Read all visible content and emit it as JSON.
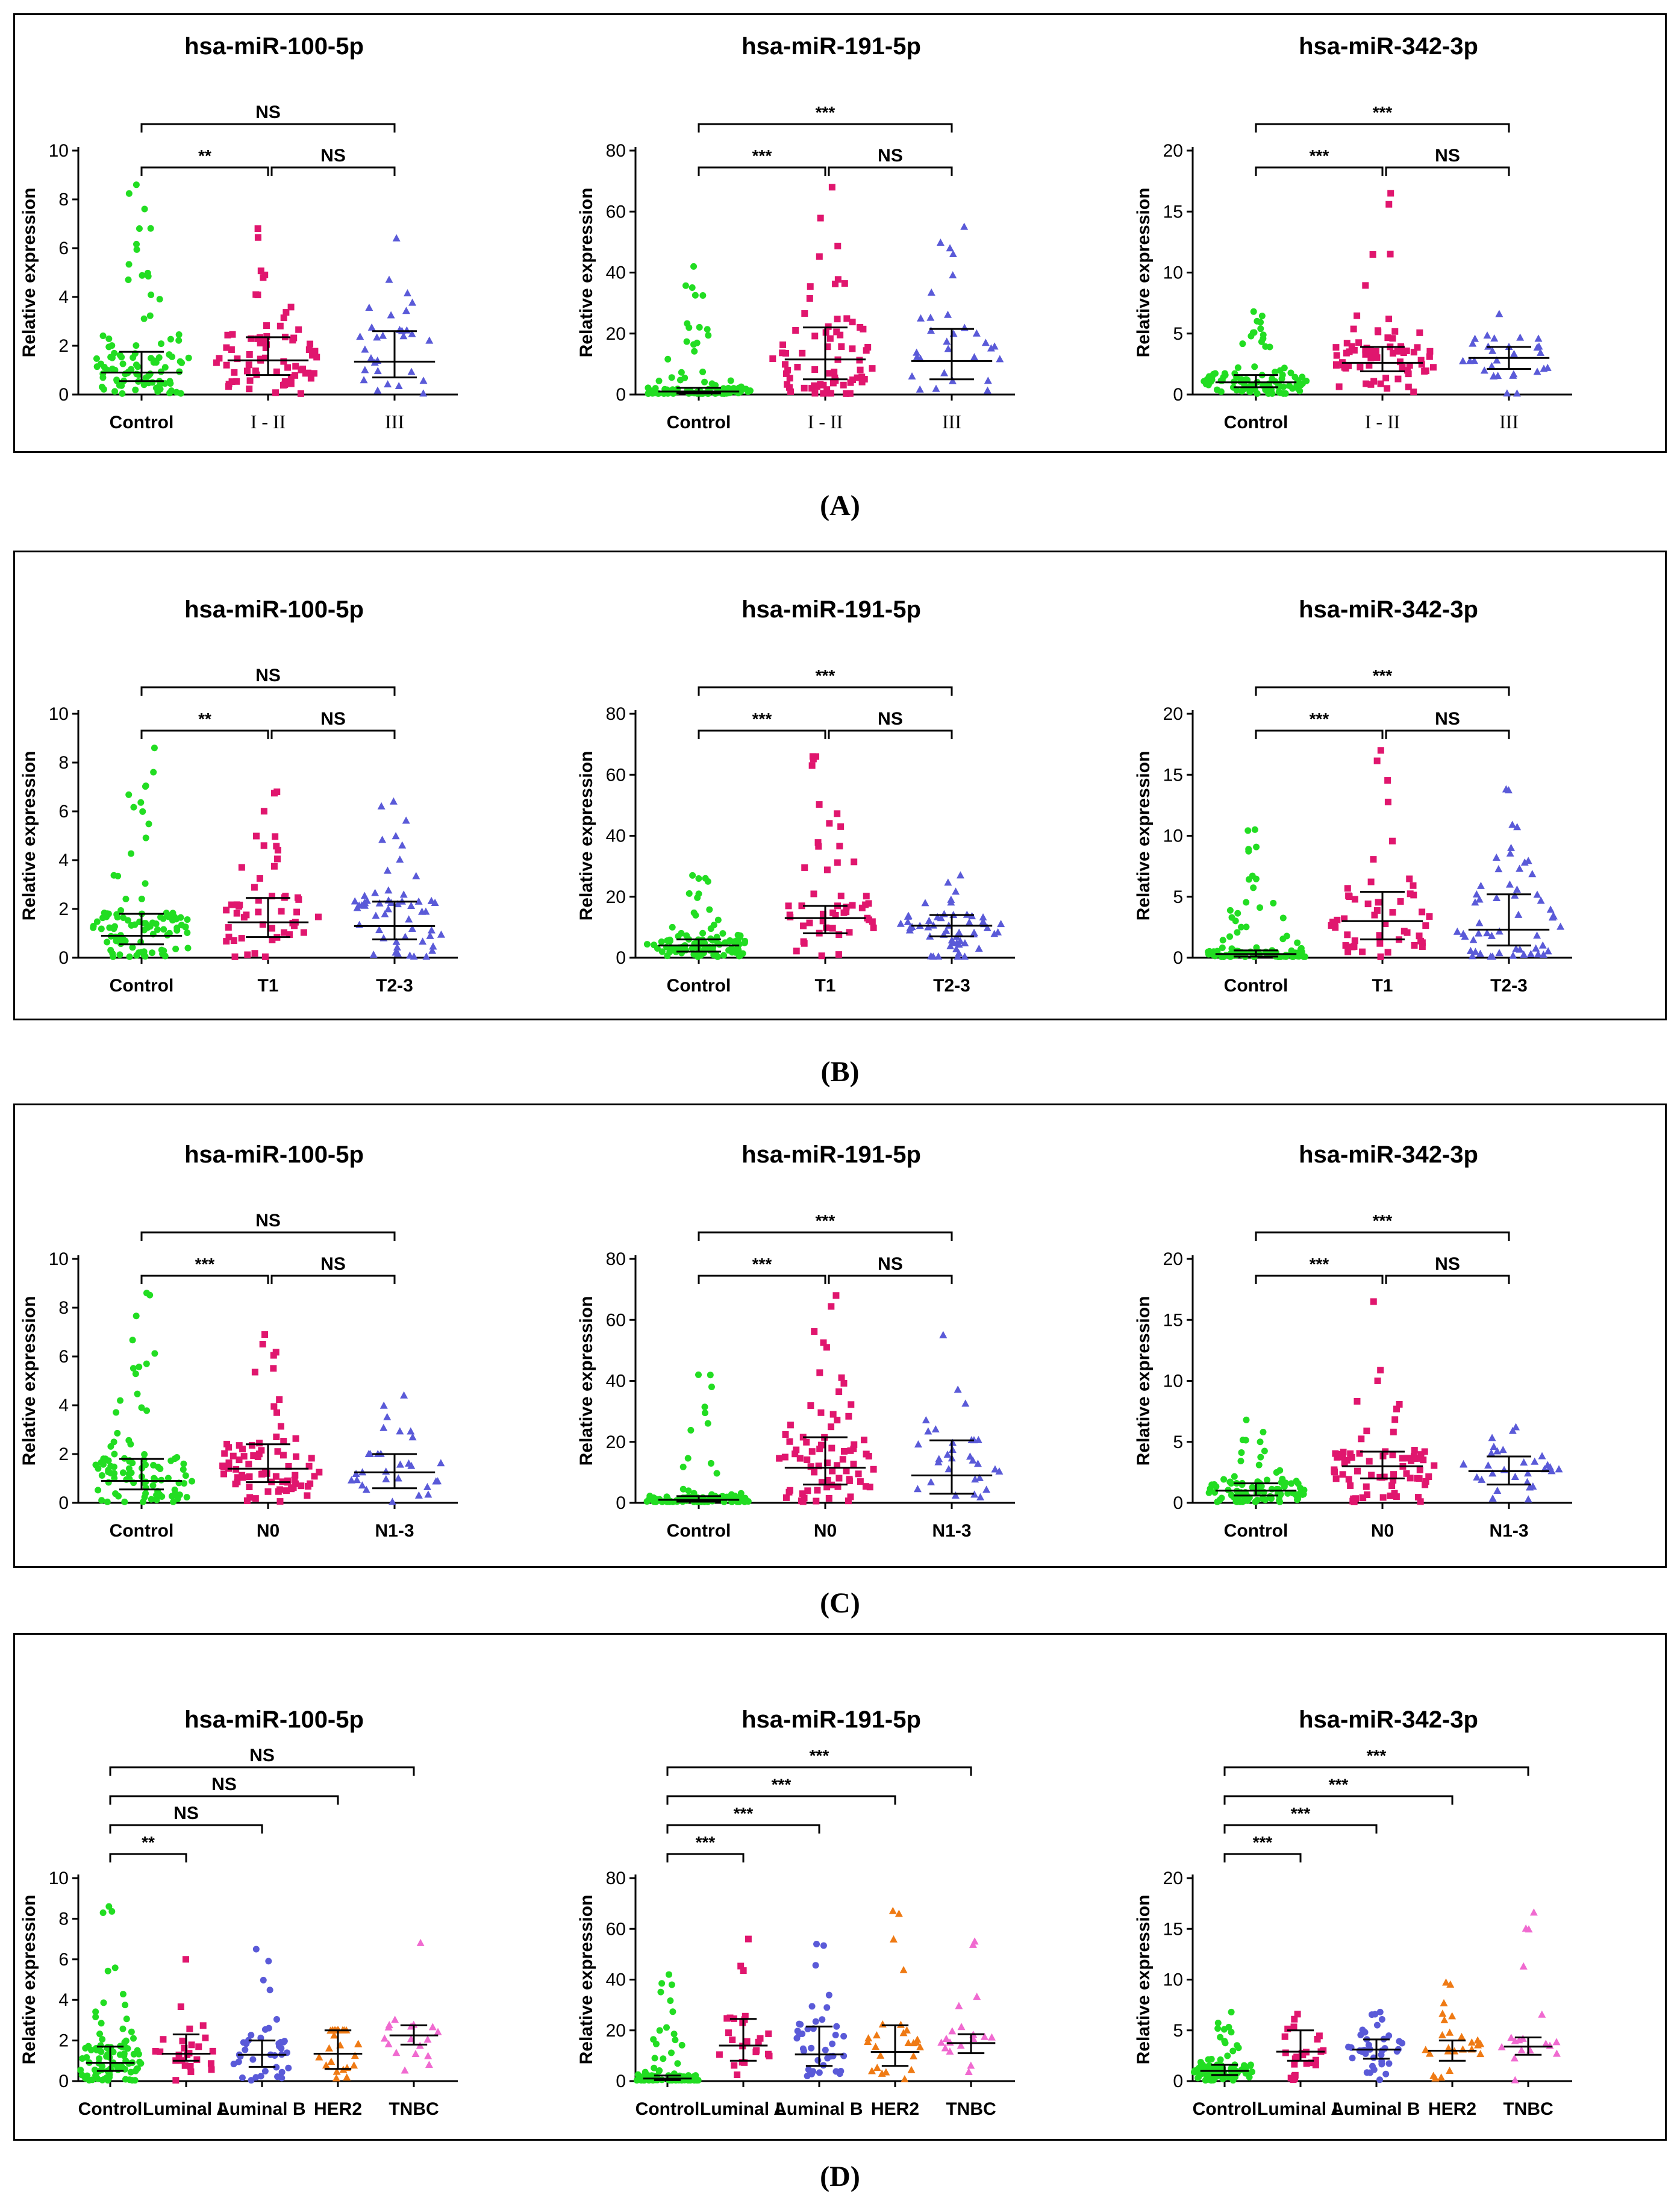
{
  "figure": {
    "colors": {
      "control": "#22dd22",
      "group1": "#e0166e",
      "group2": "#5a5ad8",
      "her2": "#ef7a14",
      "tnbc": "#f06ad0",
      "median": "#000000"
    },
    "panel_labels": [
      "(A)",
      "(B)",
      "(C)",
      "(D)"
    ]
  },
  "chart_data": [
    {
      "panel": "A",
      "title": "hsa-miR-100-5p",
      "type": "scatter",
      "ylabel": "Relative expression",
      "ylim": [
        0,
        10
      ],
      "yticks": [
        0,
        2,
        4,
        6,
        8,
        10
      ],
      "categories": [
        "Control",
        "I - II",
        "III"
      ],
      "medians": [
        0.9,
        1.4,
        1.35
      ],
      "q1": [
        0.55,
        0.8,
        0.7
      ],
      "q3": [
        1.75,
        2.35,
        2.6
      ],
      "ns": [
        95,
        70,
        30
      ],
      "maxima": [
        8.6,
        6.8,
        6.4
      ],
      "brackets": [
        {
          "from": 0,
          "to": 1,
          "label": "**"
        },
        {
          "from": 1,
          "to": 2,
          "label": "NS"
        },
        {
          "from": 0,
          "to": 2,
          "label": "NS"
        }
      ]
    },
    {
      "panel": "A",
      "title": "hsa-miR-191-5p",
      "type": "scatter",
      "ylabel": "Relative expression",
      "ylim": [
        0,
        80
      ],
      "yticks": [
        0,
        20,
        40,
        60,
        80
      ],
      "categories": [
        "Control",
        "I - II",
        "III"
      ],
      "medians": [
        1,
        11.5,
        11
      ],
      "q1": [
        0.4,
        5,
        5
      ],
      "q3": [
        2.2,
        22,
        21.5
      ],
      "ns": [
        95,
        70,
        30
      ],
      "maxima": [
        42,
        68,
        55
      ],
      "brackets": [
        {
          "from": 0,
          "to": 1,
          "label": "***"
        },
        {
          "from": 1,
          "to": 2,
          "label": "NS"
        },
        {
          "from": 0,
          "to": 2,
          "label": "***"
        }
      ]
    },
    {
      "panel": "A",
      "title": "hsa-miR-342-3p",
      "type": "scatter",
      "ylabel": "Relative expression",
      "ylim": [
        0,
        20
      ],
      "yticks": [
        0,
        5,
        10,
        15,
        20
      ],
      "categories": [
        "Control",
        "I - II",
        "III"
      ],
      "medians": [
        1,
        2.6,
        3
      ],
      "q1": [
        0.6,
        1.9,
        2.1
      ],
      "q3": [
        1.6,
        3.9,
        3.9
      ],
      "ns": [
        95,
        70,
        30
      ],
      "maxima": [
        6.8,
        16.5,
        6.6
      ],
      "brackets": [
        {
          "from": 0,
          "to": 1,
          "label": "***"
        },
        {
          "from": 1,
          "to": 2,
          "label": "NS"
        },
        {
          "from": 0,
          "to": 2,
          "label": "***"
        }
      ]
    },
    {
      "panel": "B",
      "title": "hsa-miR-100-5p",
      "type": "scatter",
      "ylabel": "Relative expression",
      "ylim": [
        0,
        10
      ],
      "yticks": [
        0,
        2,
        4,
        6,
        8,
        10
      ],
      "categories": [
        "Control",
        "T1",
        "T2-3"
      ],
      "medians": [
        0.9,
        1.45,
        1.3
      ],
      "q1": [
        0.55,
        0.85,
        0.75
      ],
      "q3": [
        1.8,
        2.45,
        2.3
      ],
      "ns": [
        95,
        50,
        55
      ],
      "maxima": [
        8.6,
        6.8,
        6.4
      ],
      "brackets": [
        {
          "from": 0,
          "to": 1,
          "label": "**"
        },
        {
          "from": 1,
          "to": 2,
          "label": "NS"
        },
        {
          "from": 0,
          "to": 2,
          "label": "NS"
        }
      ]
    },
    {
      "panel": "B",
      "title": "hsa-miR-191-5p",
      "type": "scatter",
      "ylabel": "Relative expression",
      "ylim": [
        0,
        80
      ],
      "yticks": [
        0,
        20,
        40,
        60,
        80
      ],
      "categories": [
        "Control",
        "T1",
        "T2-3"
      ],
      "medians": [
        4,
        13,
        10.5
      ],
      "q1": [
        2,
        8,
        7
      ],
      "q3": [
        6,
        17,
        14
      ],
      "ns": [
        95,
        50,
        55
      ],
      "maxima": [
        27,
        66,
        27
      ],
      "brackets": [
        {
          "from": 0,
          "to": 1,
          "label": "***"
        },
        {
          "from": 1,
          "to": 2,
          "label": "NS"
        },
        {
          "from": 0,
          "to": 2,
          "label": "***"
        }
      ]
    },
    {
      "panel": "B",
      "title": "hsa-miR-342-3p",
      "type": "scatter",
      "ylabel": "Relative expression",
      "ylim": [
        0,
        20
      ],
      "yticks": [
        0,
        5,
        10,
        15,
        20
      ],
      "categories": [
        "Control",
        "T1",
        "T2-3"
      ],
      "medians": [
        0.3,
        3,
        2.3
      ],
      "q1": [
        0.1,
        1.5,
        1
      ],
      "q3": [
        0.6,
        5.4,
        5.2
      ],
      "ns": [
        95,
        50,
        55
      ],
      "maxima": [
        10.5,
        17,
        13.8
      ],
      "brackets": [
        {
          "from": 0,
          "to": 1,
          "label": "***"
        },
        {
          "from": 1,
          "to": 2,
          "label": "NS"
        },
        {
          "from": 0,
          "to": 2,
          "label": "***"
        }
      ]
    },
    {
      "panel": "C",
      "title": "hsa-miR-100-5p",
      "type": "scatter",
      "ylabel": "Relative expression",
      "ylim": [
        0,
        10
      ],
      "yticks": [
        0,
        2,
        4,
        6,
        8,
        10
      ],
      "categories": [
        "Control",
        "N0",
        "N1-3"
      ],
      "medians": [
        0.9,
        1.4,
        1.25
      ],
      "q1": [
        0.55,
        0.85,
        0.6
      ],
      "q3": [
        1.8,
        2.4,
        2
      ],
      "ns": [
        95,
        75,
        30
      ],
      "maxima": [
        8.6,
        6.9,
        4.4
      ],
      "brackets": [
        {
          "from": 0,
          "to": 1,
          "label": "***"
        },
        {
          "from": 1,
          "to": 2,
          "label": "NS"
        },
        {
          "from": 0,
          "to": 2,
          "label": "NS"
        }
      ]
    },
    {
      "panel": "C",
      "title": "hsa-miR-191-5p",
      "type": "scatter",
      "ylabel": "Relative expression",
      "ylim": [
        0,
        80
      ],
      "yticks": [
        0,
        20,
        40,
        60,
        80
      ],
      "categories": [
        "Control",
        "N0",
        "N1-3"
      ],
      "medians": [
        1,
        11.5,
        9
      ],
      "q1": [
        0.4,
        6,
        3
      ],
      "q3": [
        2.2,
        21.5,
        20.5
      ],
      "ns": [
        95,
        75,
        30
      ],
      "maxima": [
        42,
        68,
        55
      ],
      "brackets": [
        {
          "from": 0,
          "to": 1,
          "label": "***"
        },
        {
          "from": 1,
          "to": 2,
          "label": "NS"
        },
        {
          "from": 0,
          "to": 2,
          "label": "***"
        }
      ]
    },
    {
      "panel": "C",
      "title": "hsa-miR-342-3p",
      "type": "scatter",
      "ylabel": "Relative expression",
      "ylim": [
        0,
        20
      ],
      "yticks": [
        0,
        5,
        10,
        15,
        20
      ],
      "categories": [
        "Control",
        "N0",
        "N1-3"
      ],
      "medians": [
        1,
        3,
        2.6
      ],
      "q1": [
        0.6,
        2,
        1.5
      ],
      "q3": [
        1.6,
        4.2,
        3.8
      ],
      "ns": [
        95,
        75,
        30
      ],
      "maxima": [
        6.8,
        16.5,
        6.2
      ],
      "brackets": [
        {
          "from": 0,
          "to": 1,
          "label": "***"
        },
        {
          "from": 1,
          "to": 2,
          "label": "NS"
        },
        {
          "from": 0,
          "to": 2,
          "label": "***"
        }
      ]
    },
    {
      "panel": "D",
      "title": "hsa-miR-100-5p",
      "type": "scatter",
      "ylabel": "Relative expression",
      "ylim": [
        0,
        10
      ],
      "yticks": [
        0,
        2,
        4,
        6,
        8,
        10
      ],
      "categories": [
        "Control",
        "Luminal A",
        "Luminal B",
        "HER2",
        "TNBC"
      ],
      "medians": [
        0.9,
        1.35,
        1.3,
        1.35,
        2.25
      ],
      "q1": [
        0.5,
        1,
        0.7,
        0.6,
        1.8
      ],
      "q3": [
        1.7,
        2.3,
        2,
        2.5,
        2.75
      ],
      "ns": [
        95,
        25,
        38,
        25,
        18
      ],
      "maxima": [
        8.6,
        6,
        6.5,
        2.5,
        6.8
      ],
      "brackets": [
        {
          "from": 0,
          "to": 1,
          "label": "**"
        },
        {
          "from": 0,
          "to": 2,
          "label": "NS"
        },
        {
          "from": 0,
          "to": 3,
          "label": "NS"
        },
        {
          "from": 0,
          "to": 4,
          "label": "NS"
        }
      ]
    },
    {
      "panel": "D",
      "title": "hsa-miR-191-5p",
      "type": "scatter",
      "ylabel": "Relative expression",
      "ylim": [
        0,
        80
      ],
      "yticks": [
        0,
        20,
        40,
        60,
        80
      ],
      "categories": [
        "Control",
        "Luminal A",
        "Luminal B",
        "HER2",
        "TNBC"
      ],
      "medians": [
        1,
        14,
        10.5,
        11.5,
        15
      ],
      "q1": [
        0.4,
        8,
        6,
        6,
        11
      ],
      "q3": [
        2.2,
        24.5,
        21.5,
        22,
        18.5
      ],
      "ns": [
        95,
        25,
        38,
        25,
        18
      ],
      "maxima": [
        42,
        56,
        54,
        67,
        55
      ],
      "brackets": [
        {
          "from": 0,
          "to": 1,
          "label": "***"
        },
        {
          "from": 0,
          "to": 2,
          "label": "***"
        },
        {
          "from": 0,
          "to": 3,
          "label": "***"
        },
        {
          "from": 0,
          "to": 4,
          "label": "***"
        }
      ]
    },
    {
      "panel": "D",
      "title": "hsa-miR-342-3p",
      "type": "scatter",
      "ylabel": "Relative expression",
      "ylim": [
        0,
        20
      ],
      "yticks": [
        0,
        5,
        10,
        15,
        20
      ],
      "categories": [
        "Control",
        "Luminal A",
        "Luminal B",
        "HER2",
        "TNBC"
      ],
      "medians": [
        1,
        2.9,
        3.1,
        3,
        3.4
      ],
      "q1": [
        0.6,
        2,
        2.2,
        2,
        2.6
      ],
      "q3": [
        1.6,
        5,
        4.1,
        4,
        4.3
      ],
      "ns": [
        95,
        25,
        38,
        25,
        18
      ],
      "maxima": [
        6.8,
        6.6,
        6.8,
        9.7,
        16.6
      ],
      "brackets": [
        {
          "from": 0,
          "to": 1,
          "label": "***"
        },
        {
          "from": 0,
          "to": 2,
          "label": "***"
        },
        {
          "from": 0,
          "to": 3,
          "label": "***"
        },
        {
          "from": 0,
          "to": 4,
          "label": "***"
        }
      ]
    }
  ]
}
